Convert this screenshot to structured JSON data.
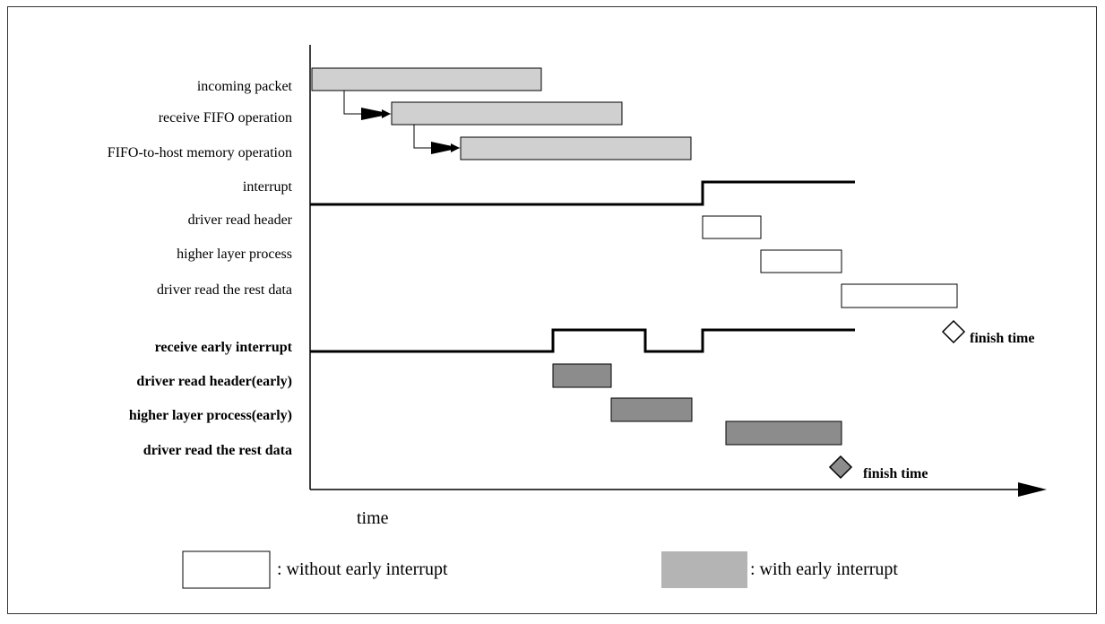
{
  "rows": [
    {
      "label": "incoming packet",
      "bold": false
    },
    {
      "label": "receive FIFO operation",
      "bold": false
    },
    {
      "label": "FIFO-to-host memory operation",
      "bold": false
    },
    {
      "label": "interrupt",
      "bold": false
    },
    {
      "label": "driver read header",
      "bold": false
    },
    {
      "label": "higher layer process",
      "bold": false
    },
    {
      "label": "driver read the rest data",
      "bold": false
    },
    {
      "label": "receive early interrupt",
      "bold": true
    },
    {
      "label": "driver read header(early)",
      "bold": true
    },
    {
      "label": "higher layer process(early)",
      "bold": true
    },
    {
      "label": "driver read the rest data",
      "bold": true
    }
  ],
  "finish_labels": [
    "finish time",
    "finish time"
  ],
  "axis_label": "time",
  "legend": {
    "without": ": without early interrupt",
    "with": ": with early interrupt"
  },
  "colors": {
    "light_fill": "#d0d0d0",
    "dark_fill": "#8c8c8c",
    "legend_fill": "#b4b4b4"
  }
}
